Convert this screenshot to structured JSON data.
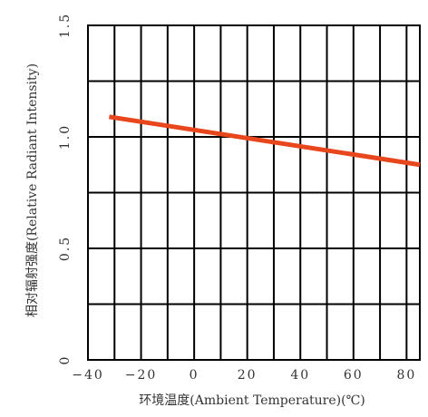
{
  "chart_data": {
    "type": "line",
    "xlabel": "环境温度(Ambient Temperature)(℃)",
    "ylabel": "相对辐射强度(Relative Radiant Intensity)",
    "xlim": [
      -40,
      85
    ],
    "ylim": [
      0,
      1.5
    ],
    "x_ticks": [
      "−40",
      "−20",
      "0",
      "20",
      "40",
      "60",
      "80"
    ],
    "x_tick_values": [
      -40,
      -20,
      0,
      20,
      40,
      60,
      80
    ],
    "y_ticks": [
      "0",
      "0.5",
      "1.0",
      "1.5"
    ],
    "y_tick_values": [
      0,
      0.5,
      1.0,
      1.5
    ],
    "grid": true,
    "series": [
      {
        "x": [
          -32,
          85
        ],
        "values": [
          1.09,
          0.875
        ]
      }
    ],
    "colors": {
      "line": "#e8461c",
      "grid": "#000000",
      "text": "#333333"
    }
  }
}
